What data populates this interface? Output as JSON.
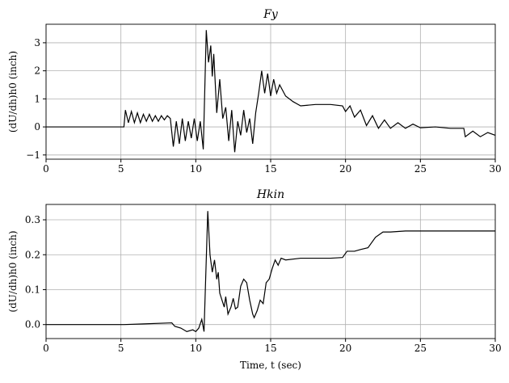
{
  "chart_data": [
    {
      "type": "line",
      "title": "Fy",
      "y_label": "(dU/dh)h0 (inch)",
      "grid": true,
      "xlim": [
        0,
        30
      ],
      "xticks": [
        0,
        5,
        10,
        15,
        20,
        25,
        30
      ],
      "ylim": [
        -1.15,
        3.66
      ],
      "yticks": [
        {
          "value": -1,
          "label": "−1"
        },
        0,
        1,
        2,
        3
      ],
      "x": [
        0,
        5.2,
        5.3,
        5.5,
        5.7,
        5.9,
        6.1,
        6.3,
        6.5,
        6.7,
        6.9,
        7.1,
        7.3,
        7.5,
        7.7,
        7.9,
        8.1,
        8.3,
        8.5,
        8.7,
        8.9,
        9.1,
        9.3,
        9.5,
        9.7,
        9.9,
        10.1,
        10.3,
        10.5,
        10.7,
        10.85,
        11.0,
        11.1,
        11.2,
        11.4,
        11.6,
        11.8,
        12.0,
        12.2,
        12.4,
        12.6,
        12.8,
        13.0,
        13.2,
        13.4,
        13.6,
        13.8,
        14.0,
        14.2,
        14.4,
        14.6,
        14.8,
        15.0,
        15.2,
        15.4,
        15.6,
        16.0,
        16.5,
        17,
        18,
        19,
        19.8,
        20.0,
        20.3,
        20.6,
        21,
        21.4,
        21.8,
        22.2,
        22.6,
        23,
        23.5,
        24,
        24.5,
        25,
        26,
        27,
        27.9,
        28,
        28.5,
        29,
        29.5,
        30
      ],
      "series": [
        {
          "color": "#000000",
          "values": [
            0,
            0,
            0.6,
            0.15,
            0.55,
            0.15,
            0.5,
            0.15,
            0.45,
            0.2,
            0.45,
            0.2,
            0.4,
            0.2,
            0.4,
            0.25,
            0.4,
            0.3,
            -0.7,
            0.2,
            -0.6,
            0.3,
            -0.5,
            0.2,
            -0.4,
            0.3,
            -0.5,
            0.2,
            -0.8,
            3.45,
            2.3,
            2.9,
            1.8,
            2.6,
            0.5,
            1.7,
            0.3,
            0.7,
            -0.5,
            0.6,
            -0.9,
            0.2,
            -0.3,
            0.6,
            -0.2,
            0.3,
            -0.6,
            0.5,
            1.2,
            2.0,
            1.2,
            1.9,
            1.1,
            1.7,
            1.2,
            1.5,
            1.1,
            0.9,
            0.75,
            0.8,
            0.8,
            0.75,
            0.55,
            0.75,
            0.35,
            0.6,
            0.05,
            0.4,
            -0.05,
            0.25,
            -0.05,
            0.15,
            -0.05,
            0.1,
            -0.03,
            0,
            -0.05,
            -0.05,
            -0.35,
            -0.15,
            -0.35,
            -0.2,
            -0.3
          ]
        }
      ]
    },
    {
      "type": "line",
      "title": "Hkin",
      "x_label": "Time, t (sec)",
      "y_label": "(dU/dh)h0 (inch)",
      "grid": true,
      "xlim": [
        0,
        30
      ],
      "xticks": [
        0,
        5,
        10,
        15,
        20,
        25,
        30
      ],
      "ylim": [
        -0.04,
        0.344
      ],
      "yticks": [
        {
          "value": 0,
          "label": "0.0"
        },
        0.1,
        0.2,
        0.3
      ],
      "x": [
        0,
        5.2,
        6.5,
        8.4,
        8.6,
        9.0,
        9.4,
        9.8,
        10.0,
        10.2,
        10.4,
        10.55,
        10.8,
        10.95,
        11.1,
        11.25,
        11.4,
        11.5,
        11.6,
        11.75,
        11.9,
        12.0,
        12.15,
        12.35,
        12.5,
        12.65,
        12.8,
        13.0,
        13.2,
        13.4,
        13.6,
        13.8,
        13.9,
        14.1,
        14.3,
        14.5,
        14.7,
        14.9,
        15.1,
        15.3,
        15.5,
        15.7,
        16,
        17,
        18,
        19,
        19.8,
        20.1,
        20.6,
        21,
        21.5,
        22,
        22.5,
        23,
        24,
        25,
        30
      ],
      "series": [
        {
          "color": "#000000",
          "values": [
            0,
            0,
            0.002,
            0.005,
            -0.005,
            -0.01,
            -0.02,
            -0.015,
            -0.02,
            -0.01,
            0.015,
            -0.02,
            0.325,
            0.2,
            0.15,
            0.185,
            0.13,
            0.15,
            0.09,
            0.07,
            0.05,
            0.08,
            0.03,
            0.05,
            0.075,
            0.045,
            0.05,
            0.11,
            0.13,
            0.12,
            0.07,
            0.03,
            0.02,
            0.04,
            0.07,
            0.06,
            0.12,
            0.13,
            0.16,
            0.185,
            0.17,
            0.19,
            0.185,
            0.19,
            0.19,
            0.19,
            0.192,
            0.21,
            0.21,
            0.215,
            0.22,
            0.25,
            0.265,
            0.265,
            0.268,
            0.268,
            0.268
          ]
        }
      ]
    }
  ]
}
